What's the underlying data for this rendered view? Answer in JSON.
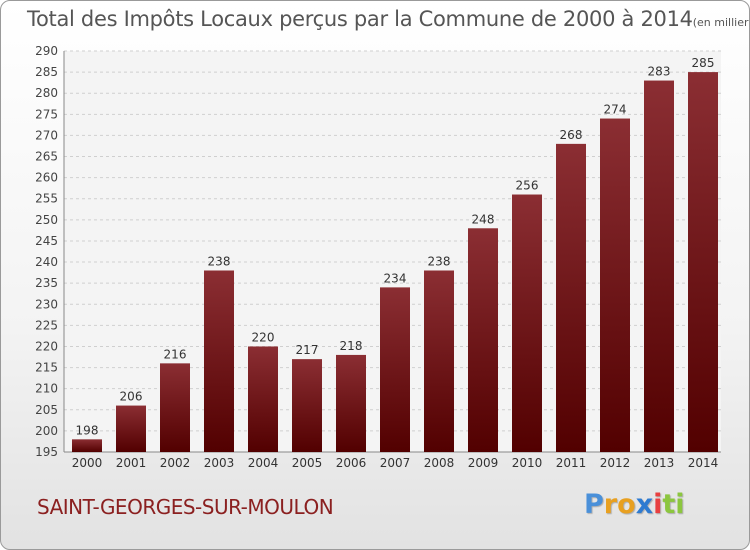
{
  "chart_data": {
    "type": "bar",
    "title": "Total des Impôts Locaux perçus par la Commune de 2000 à 2014",
    "unit_label": "(en milliers d'€)",
    "categories": [
      "2000",
      "2001",
      "2002",
      "2003",
      "2004",
      "2005",
      "2006",
      "2007",
      "2008",
      "2009",
      "2010",
      "2011",
      "2012",
      "2013",
      "2014"
    ],
    "values": [
      198,
      206,
      216,
      238,
      220,
      217,
      218,
      234,
      238,
      248,
      256,
      268,
      274,
      283,
      285
    ],
    "ylim": [
      195,
      290
    ],
    "ytick_step": 5,
    "xlabel": "",
    "ylabel": "",
    "grid": true,
    "bar_color_top": "#8b2e33",
    "bar_color_bottom": "#520000"
  },
  "commune_name": "SAINT-GEORGES-SUR-MOULON",
  "brand": {
    "letters": [
      "P",
      "r",
      "o",
      "x",
      "i",
      "t",
      "i"
    ],
    "colors": [
      "#4a90d9",
      "#e8a020",
      "#e8a020",
      "#2e7bd1",
      "#e84040",
      "#8cc63f",
      "#8cc63f"
    ]
  }
}
